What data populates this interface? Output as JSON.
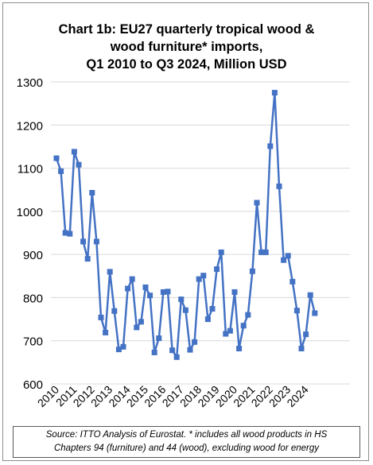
{
  "chart_data": {
    "type": "line",
    "title_lines": [
      "Chart 1b: EU27 quarterly tropical wood &",
      "wood furniture* imports,",
      "Q1 2010 to Q3 2024, Million USD"
    ],
    "xlabel": "",
    "ylabel": "",
    "ylim": [
      600,
      1300
    ],
    "yticks": [
      600,
      700,
      800,
      900,
      1000,
      1100,
      1200,
      1300
    ],
    "xtick_labels": [
      "2010",
      "2011",
      "2012",
      "2013",
      "2014",
      "2015",
      "2016",
      "2017",
      "2018",
      "2019",
      "2020",
      "2021",
      "2022",
      "2023",
      "2024"
    ],
    "grid": "horizontal",
    "legend": "none",
    "series": [
      {
        "color": "#4472c4",
        "marker": "square",
        "x": [
          "Q1 2010",
          "Q2 2010",
          "Q3 2010",
          "Q4 2010",
          "Q1 2011",
          "Q2 2011",
          "Q3 2011",
          "Q4 2011",
          "Q1 2012",
          "Q2 2012",
          "Q3 2012",
          "Q4 2012",
          "Q1 2013",
          "Q2 2013",
          "Q3 2013",
          "Q4 2013",
          "Q1 2014",
          "Q2 2014",
          "Q3 2014",
          "Q4 2014",
          "Q1 2015",
          "Q2 2015",
          "Q3 2015",
          "Q4 2015",
          "Q1 2016",
          "Q2 2016",
          "Q3 2016",
          "Q4 2016",
          "Q1 2017",
          "Q2 2017",
          "Q3 2017",
          "Q4 2017",
          "Q1 2018",
          "Q2 2018",
          "Q3 2018",
          "Q4 2018",
          "Q1 2019",
          "Q2 2019",
          "Q3 2019",
          "Q4 2019",
          "Q1 2020",
          "Q2 2020",
          "Q3 2020",
          "Q4 2020",
          "Q1 2021",
          "Q2 2021",
          "Q3 2021",
          "Q4 2021",
          "Q1 2022",
          "Q2 2022",
          "Q3 2022",
          "Q4 2022",
          "Q1 2023",
          "Q2 2023",
          "Q3 2023",
          "Q4 2023",
          "Q1 2024",
          "Q2 2024",
          "Q3 2024"
        ],
        "values": [
          1123,
          1093,
          950,
          948,
          1138,
          1108,
          930,
          890,
          1043,
          930,
          754,
          719,
          860,
          769,
          680,
          686,
          821,
          843,
          731,
          744,
          824,
          805,
          673,
          706,
          813,
          814,
          678,
          662,
          796,
          771,
          679,
          697,
          843,
          851,
          750,
          774,
          866,
          905,
          716,
          723,
          813,
          682,
          735,
          760,
          861,
          1020,
          905,
          905,
          1151,
          1275,
          1058,
          887,
          897,
          837,
          770,
          682,
          715,
          806,
          764
        ]
      }
    ]
  },
  "source_note": [
    "Source: ITTO Analysis of Eurostat. * includes all wood products in HS",
    "Chapters 94 (furniture) and 44 (wood), excluding wood for energy"
  ]
}
